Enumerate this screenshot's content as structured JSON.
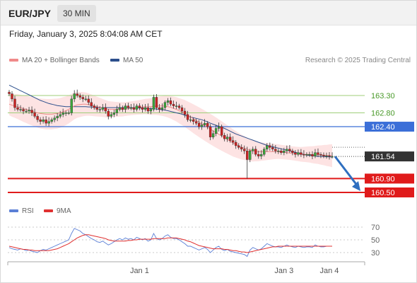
{
  "header": {
    "symbol": "EUR/JPY",
    "timeframe": "30 MIN",
    "datetime": "Friday, January 3, 2025 8:04:08 AM CET"
  },
  "legend": {
    "ma20_label": "MA 20 + Bollinger Bands",
    "ma50_label": "MA 50",
    "copyright": "Research © 2025 Trading Central",
    "ma20_color": "#f08a8a",
    "ma50_color": "#2c4f8c"
  },
  "rsi_legend": {
    "rsi_label": "RSI",
    "ma9_label": "9MA",
    "rsi_color": "#5b7fd6",
    "ma9_color": "#e03030"
  },
  "colors": {
    "bull": "#3aa53a",
    "bear": "#cc2222",
    "bollinger_fill": "#fde3e3",
    "resistance": "#9fcf7a",
    "pivot": "#3b6fd8",
    "support": "#e01b1b",
    "current": "#333333",
    "arrow": "#2f6fc0"
  },
  "chart_data": {
    "type": "line",
    "instrument": "EUR/JPY",
    "interval": "30 MIN",
    "price_levels": [
      {
        "label": "163.30",
        "value": 163.3,
        "kind": "resistance"
      },
      {
        "label": "162.80",
        "value": 162.8,
        "kind": "resistance"
      },
      {
        "label": "162.40",
        "value": 162.4,
        "kind": "pivot"
      },
      {
        "label": "161.54",
        "value": 161.54,
        "kind": "current"
      },
      {
        "label": "160.90",
        "value": 160.9,
        "kind": "support"
      },
      {
        "label": "160.50",
        "value": 160.5,
        "kind": "support"
      }
    ],
    "y_range": [
      160.5,
      163.7
    ],
    "x_ticks": [
      "Jan 1",
      "Jan 3",
      "Jan 4"
    ],
    "x_tick_index": [
      46,
      97,
      113
    ],
    "candle_count": 115,
    "closes": [
      163.35,
      163.2,
      162.95,
      162.9,
      162.9,
      162.85,
      162.85,
      162.88,
      162.8,
      162.7,
      162.6,
      162.55,
      162.6,
      162.5,
      162.55,
      162.6,
      162.65,
      162.7,
      162.75,
      162.8,
      162.8,
      162.8,
      163.2,
      163.35,
      163.3,
      163.25,
      163.2,
      163.2,
      163.1,
      163,
      162.95,
      162.9,
      162.9,
      162.95,
      162.85,
      162.7,
      162.75,
      162.8,
      162.9,
      162.95,
      162.9,
      163,
      162.95,
      162.95,
      162.9,
      163,
      162.95,
      162.9,
      162.95,
      162.85,
      162.9,
      163.25,
      162.95,
      162.9,
      162.95,
      163.1,
      163.15,
      163.05,
      163,
      163,
      162.95,
      162.85,
      162.75,
      162.6,
      162.6,
      162.55,
      162.5,
      162.4,
      162.45,
      162.5,
      162.4,
      162.1,
      162.2,
      162.35,
      162.4,
      162.15,
      162.05,
      162.1,
      162,
      161.95,
      161.85,
      161.8,
      161.75,
      161.7,
      161.45,
      161.7,
      161.75,
      161.6,
      161.55,
      161.6,
      161.75,
      161.85,
      161.8,
      161.75,
      161.7,
      161.7,
      161.65,
      161.7,
      161.75,
      161.7,
      161.65,
      161.6,
      161.65,
      161.6,
      161.58,
      161.6,
      161.6,
      161.55,
      161.65,
      161.6,
      161.58,
      161.55,
      161.56,
      161.54,
      161.54
    ],
    "ma20": [
      163.05,
      163.02,
      163,
      162.98,
      162.95,
      162.92,
      162.9,
      162.87,
      162.85,
      162.82,
      162.8,
      162.78,
      162.77,
      162.76,
      162.76,
      162.76,
      162.77,
      162.78,
      162.8,
      162.83,
      162.86,
      162.9,
      162.95,
      163,
      163.03,
      163.04,
      163.05,
      163.05,
      163.04,
      163.02,
      163,
      162.98,
      162.96,
      162.94,
      162.92,
      162.9,
      162.9,
      162.9,
      162.9,
      162.9,
      162.9,
      162.91,
      162.92,
      162.93,
      162.94,
      162.95,
      162.96,
      162.97,
      162.98,
      162.98,
      162.98,
      162.99,
      163,
      163,
      163,
      162.99,
      162.98,
      162.96,
      162.93,
      162.9,
      162.86,
      162.82,
      162.78,
      162.73,
      162.68,
      162.63,
      162.58,
      162.53,
      162.48,
      162.43,
      162.38,
      162.33,
      162.28,
      162.23,
      162.18,
      162.13,
      162.08,
      162.03,
      161.98,
      161.93,
      161.89,
      161.85,
      161.81,
      161.78,
      161.75,
      161.72,
      161.7,
      161.69,
      161.68,
      161.68,
      161.68,
      161.68,
      161.68,
      161.68,
      161.68,
      161.68,
      161.67,
      161.66,
      161.65,
      161.64,
      161.63,
      161.62,
      161.61,
      161.6,
      161.6,
      161.6,
      161.6,
      161.59,
      161.59,
      161.59,
      161.58,
      161.58,
      161.57,
      161.57,
      161.56
    ],
    "ma50": [
      163.6,
      163.56,
      163.52,
      163.48,
      163.44,
      163.4,
      163.36,
      163.32,
      163.28,
      163.24,
      163.2,
      163.16,
      163.13,
      163.1,
      163.07,
      163.05,
      163.03,
      163.01,
      163,
      162.99,
      162.98,
      162.98,
      162.98,
      162.98,
      162.98,
      162.98,
      162.98,
      162.98,
      162.97,
      162.97,
      162.96,
      162.96,
      162.95,
      162.95,
      162.95,
      162.95,
      162.95,
      162.95,
      162.95,
      162.95,
      162.95,
      162.95,
      162.95,
      162.95,
      162.95,
      162.94,
      162.94,
      162.94,
      162.93,
      162.93,
      162.92,
      162.92,
      162.91,
      162.9,
      162.89,
      162.88,
      162.86,
      162.84,
      162.82,
      162.8,
      162.78,
      162.76,
      162.73,
      162.7,
      162.68,
      162.66,
      162.64,
      162.62,
      162.6,
      162.57,
      162.54,
      162.5,
      162.47,
      162.44,
      162.41,
      162.38,
      162.35,
      162.31,
      162.27,
      162.23,
      162.19,
      162.16,
      162.13,
      162.1,
      162.07,
      162.04,
      162.01,
      161.98,
      161.95,
      161.92,
      161.89,
      161.86,
      161.84,
      161.82,
      161.8,
      161.78,
      161.76,
      161.74,
      161.72,
      161.7,
      161.68,
      161.66,
      161.64,
      161.62,
      161.6,
      161.58,
      161.57,
      161.56,
      161.55,
      161.54,
      161.54,
      161.54,
      161.53,
      161.53,
      161.52
    ],
    "rsi_axis_ticks": [
      70,
      50,
      30
    ],
    "rsi_range": [
      20,
      85
    ],
    "rsi": [
      38,
      36,
      35,
      34,
      36,
      35,
      33,
      34,
      32,
      31,
      30,
      33,
      35,
      34,
      36,
      38,
      40,
      42,
      44,
      46,
      48,
      50,
      60,
      68,
      66,
      64,
      60,
      58,
      55,
      52,
      50,
      47,
      46,
      48,
      45,
      42,
      44,
      47,
      50,
      52,
      50,
      53,
      51,
      52,
      50,
      54,
      52,
      50,
      52,
      48,
      50,
      60,
      52,
      50,
      52,
      56,
      58,
      54,
      52,
      52,
      50,
      47,
      44,
      40,
      40,
      38,
      36,
      34,
      36,
      38,
      35,
      30,
      34,
      38,
      40,
      35,
      33,
      35,
      32,
      31,
      30,
      29,
      28,
      27,
      24,
      34,
      38,
      36,
      34,
      36,
      40,
      44,
      42,
      40,
      39,
      39,
      38,
      40,
      42,
      40,
      39,
      38,
      40,
      39,
      38,
      39,
      39,
      38,
      42,
      40,
      39,
      39,
      40,
      40,
      40
    ],
    "rsi_ma9": [
      40,
      39,
      38,
      37,
      36,
      35,
      35,
      34,
      34,
      33,
      33,
      33,
      33,
      33,
      33,
      34,
      35,
      36,
      38,
      40,
      42,
      44,
      47,
      50,
      53,
      55,
      57,
      58,
      58,
      57,
      56,
      55,
      54,
      53,
      52,
      50,
      49,
      48,
      48,
      48,
      48,
      48,
      49,
      49,
      50,
      50,
      51,
      51,
      51,
      51,
      51,
      52,
      52,
      52,
      52,
      52,
      53,
      53,
      53,
      53,
      52,
      51,
      50,
      48,
      47,
      45,
      43,
      41,
      40,
      39,
      38,
      37,
      36,
      36,
      36,
      36,
      35,
      35,
      34,
      33,
      33,
      32,
      31,
      31,
      30,
      31,
      32,
      33,
      34,
      35,
      36,
      37,
      38,
      39,
      39,
      40,
      40,
      40,
      40,
      40,
      40,
      40,
      40,
      40,
      40,
      40,
      40,
      40,
      40,
      40,
      40,
      40,
      40,
      40,
      40
    ],
    "forecast_arrow": {
      "from": 161.54,
      "to": 160.5
    }
  }
}
